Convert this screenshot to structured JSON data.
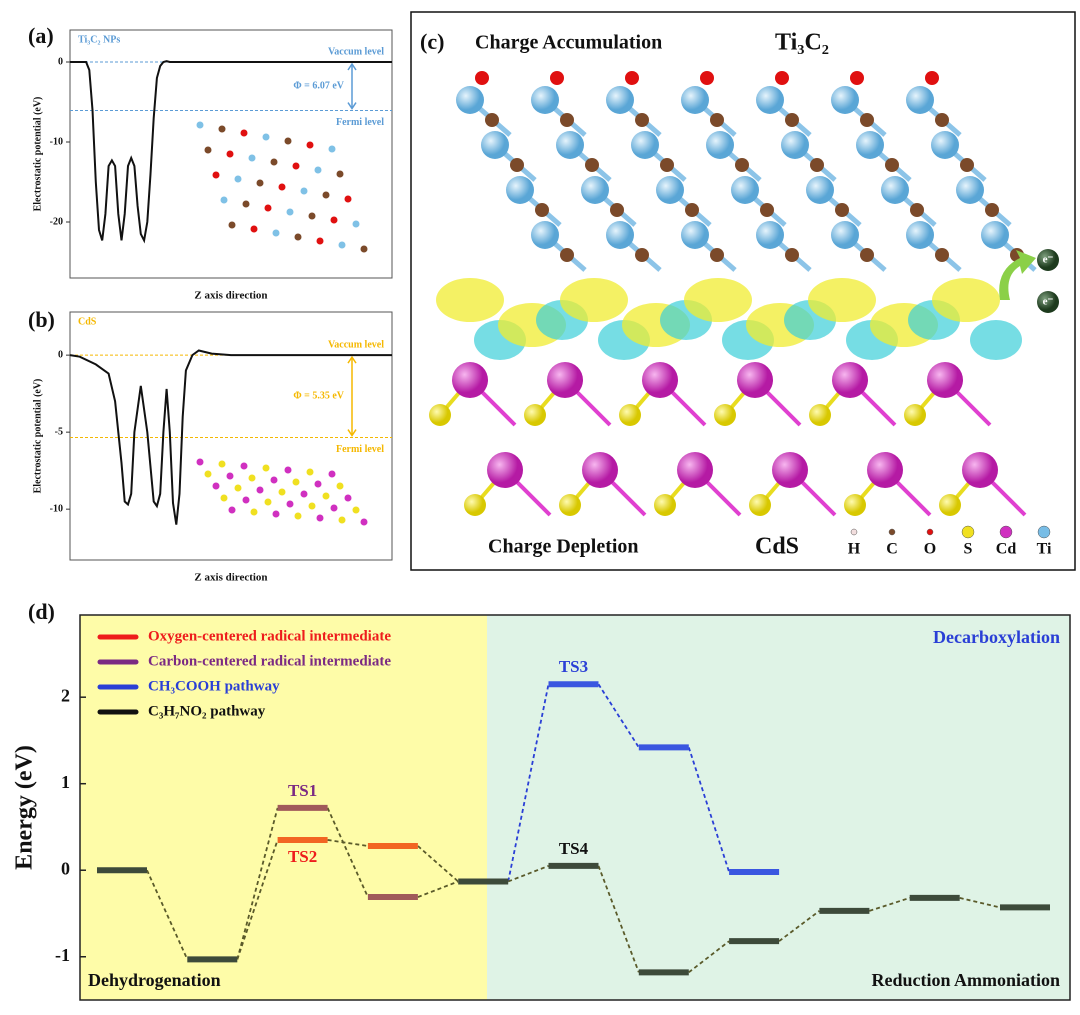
{
  "chart_data": [
    {
      "type": "line",
      "label": "(a)",
      "title": "Ti₃C₂ NPs",
      "ylabel": "Electrostatic potential (eV)",
      "xlabel": "Z axis direction",
      "color": "#5b9bd5",
      "line_color": "#111111",
      "x": [
        0,
        5,
        6,
        7,
        8,
        9,
        10,
        11,
        12,
        13,
        14,
        15,
        16,
        17,
        18,
        19,
        20,
        21,
        22,
        23,
        24,
        25,
        26,
        27,
        28,
        29,
        30,
        31,
        32,
        40,
        100
      ],
      "values": [
        0,
        0,
        -1,
        -6,
        -15,
        -21,
        -22.3,
        -19,
        -13,
        -12.3,
        -13,
        -19,
        -22.3,
        -19,
        -13,
        -12,
        -13,
        -18,
        -21.5,
        -22.3,
        -20,
        -14,
        -7,
        -2,
        -0.5,
        0,
        0.1,
        0,
        0,
        0,
        0
      ],
      "xlim": [
        0,
        100
      ],
      "ylim": [
        -27,
        4
      ],
      "yticks": [
        0,
        -10,
        -20
      ],
      "vacuum_level": 0,
      "vacuum_label": "Vaccum level",
      "fermi_level": -6.07,
      "fermi_label": "Fermi level",
      "work_function_label": "Φ = 6.07 eV"
    },
    {
      "type": "line",
      "label": "(b)",
      "title": "CdS",
      "ylabel": "Electrostatic potential (eV)",
      "xlabel": "Z axis direction",
      "color": "#f5b800",
      "line_color": "#111111",
      "x": [
        0,
        3,
        8,
        12,
        14,
        16,
        17,
        18,
        19,
        20,
        22,
        24,
        26,
        27,
        28,
        29,
        30,
        31,
        32,
        33,
        34,
        35,
        36,
        38,
        40,
        44,
        50,
        100
      ],
      "values": [
        0,
        -0.1,
        -0.6,
        -1.2,
        -3,
        -7,
        -9.5,
        -9.7,
        -9,
        -5,
        -2,
        -5,
        -9.5,
        -9.8,
        -9,
        -5,
        -2.2,
        -5,
        -9.6,
        -11,
        -9,
        -4,
        -1,
        0,
        0.3,
        0.1,
        0,
        0
      ],
      "xlim": [
        0,
        100
      ],
      "ylim": [
        -13.3,
        2.8
      ],
      "yticks": [
        0,
        -5,
        -10
      ],
      "vacuum_level": 0,
      "vacuum_label": "Vaccum level",
      "fermi_level": -5.35,
      "fermi_label": "Fermi level",
      "work_function_label": "Φ = 5.35 eV"
    },
    {
      "type": "energy_profile",
      "label": "(d)",
      "ylabel": "Energy (eV)",
      "ylim": [
        -1.5,
        2.95
      ],
      "yticks": [
        -1,
        0,
        1,
        2
      ],
      "regions": [
        "Dehydrogenation",
        "Decarboxylation",
        "Reduction Ammoniation"
      ],
      "categories": [
        null,
        null,
        null,
        null,
        null,
        null,
        null,
        null,
        null,
        null,
        null
      ],
      "series": [
        {
          "name": "Oxygen-centered radical intermediate",
          "color": "#ee1c1c",
          "level_color": "#f26522",
          "values": [
            null,
            null,
            0.35,
            0.28,
            null,
            null,
            null,
            null,
            null,
            null,
            null
          ],
          "point_labels": [
            null,
            null,
            "TS2",
            null,
            null,
            null,
            null,
            null,
            null,
            null,
            null
          ]
        },
        {
          "name": "Carbon-centered radical intermediate",
          "color": "#7b2a83",
          "level_color": "#a05a5a",
          "values": [
            null,
            null,
            0.72,
            -0.31,
            null,
            null,
            null,
            null,
            null,
            null,
            null
          ],
          "point_labels": [
            null,
            null,
            "TS1",
            null,
            null,
            null,
            null,
            null,
            null,
            null,
            null
          ]
        },
        {
          "name": "CH₃COOH pathway",
          "color": "#2a3fd6",
          "level_color": "#3a56e0",
          "values": [
            null,
            null,
            null,
            null,
            null,
            2.15,
            1.42,
            -0.02,
            null,
            null,
            null
          ],
          "point_labels": [
            null,
            null,
            null,
            null,
            null,
            "TS3",
            null,
            null,
            null,
            null,
            null
          ]
        },
        {
          "name": "C₃H₇NO₂ pathway",
          "color": "#111111",
          "level_color": "#3d4a3a",
          "values": [
            0,
            -1.03,
            null,
            null,
            -0.13,
            0.05,
            -1.18,
            -0.82,
            -0.47,
            -0.32,
            -0.43
          ],
          "point_labels": [
            null,
            null,
            null,
            null,
            null,
            "TS4",
            null,
            null,
            null,
            null,
            null
          ]
        }
      ]
    }
  ],
  "figure": {
    "label": "(c)",
    "top_label": "Charge Accumulation",
    "top_material": "Ti₃C₂",
    "bottom_label": "Charge Depletion",
    "bottom_material": "CdS",
    "electron_label": "e⁻",
    "atoms": [
      {
        "label": "H",
        "color": "#f2dede"
      },
      {
        "label": "C",
        "color": "#7b4a2a"
      },
      {
        "label": "O",
        "color": "#e01010"
      },
      {
        "label": "S",
        "color": "#f0e020"
      },
      {
        "label": "Cd",
        "color": "#d030c0"
      },
      {
        "label": "Ti",
        "color": "#78bde6"
      }
    ]
  }
}
